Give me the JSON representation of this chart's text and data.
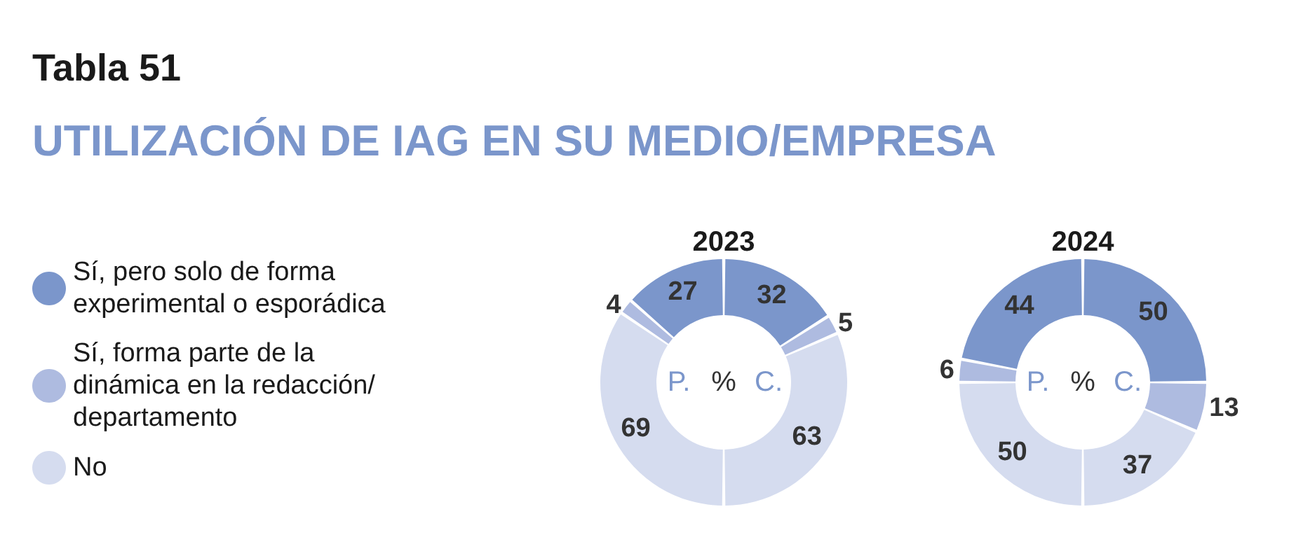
{
  "chart_data": {
    "type": "donut",
    "title": "Tabla 51",
    "subtitle": "UTILIZACIÓN DE IAG EN SU MEDIO/EMPRESA",
    "legend": "left",
    "data_labels": true,
    "categories": [
      "Sí, pero solo de forma experimental o esporádica",
      "Sí, forma parte de la dinámica en la redacción/departamento",
      "No",
      null,
      null,
      null
    ],
    "colors": [
      "#7b96cb",
      "#aebbe0",
      "#d5dcef",
      "#d5dcef",
      "#aebbe0",
      "#7b96cb"
    ],
    "series": [
      {
        "name": "2023",
        "values": [
          32,
          5,
          63,
          69,
          4,
          27
        ]
      },
      {
        "name": "2024",
        "values": [
          50,
          13,
          37,
          50,
          6,
          44
        ]
      }
    ],
    "annotations": [
      "P.",
      "%",
      "C."
    ]
  }
}
